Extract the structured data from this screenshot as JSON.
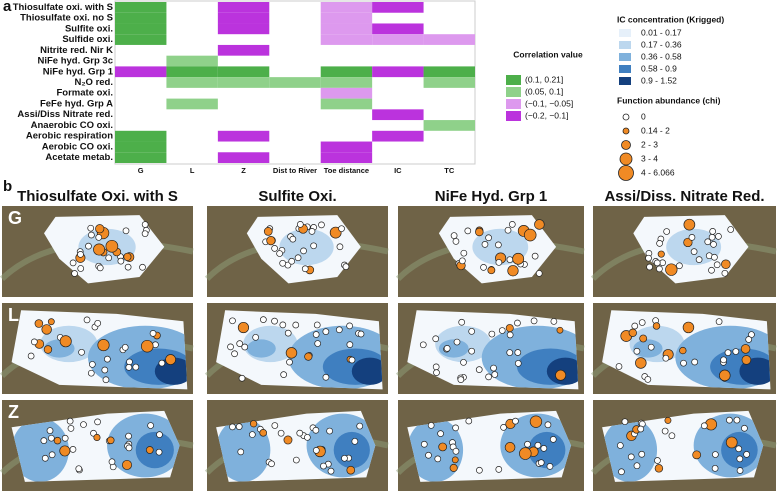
{
  "chart_data": {
    "type": "heatmap",
    "rows": [
      "Thiosulfate oxi. with S",
      "Thiosulfate oxi. no S",
      "Sulfite oxi.",
      "Sulfide oxi.",
      "Nitrite red. Nir K",
      "NiFe hyd. Grp 3c",
      "NiFe hyd. Grp 1",
      "N₂O red.",
      "Formate oxi.",
      "FeFe hyd. Grp A",
      "Assi/Diss Nitrate red.",
      "Anaerobic CO oxi.",
      "Aerobic respiration",
      "Aerobic CO oxi.",
      "Acetate metab."
    ],
    "columns": [
      "G",
      "L",
      "Z",
      "Dist to River",
      "Toe distance",
      "IC",
      "TC"
    ],
    "values": [
      [
        0.15,
        null,
        -0.15,
        null,
        -0.07,
        -0.15,
        null
      ],
      [
        0.15,
        null,
        -0.15,
        null,
        -0.07,
        null,
        null
      ],
      [
        0.15,
        null,
        -0.15,
        null,
        -0.07,
        -0.15,
        null
      ],
      [
        0.15,
        null,
        null,
        null,
        -0.07,
        -0.07,
        -0.07
      ],
      [
        null,
        null,
        -0.15,
        null,
        null,
        null,
        null
      ],
      [
        null,
        0.07,
        null,
        null,
        null,
        null,
        null
      ],
      [
        -0.15,
        0.15,
        0.15,
        null,
        0.15,
        -0.15,
        0.15
      ],
      [
        null,
        0.07,
        0.07,
        0.07,
        0.07,
        null,
        0.07
      ],
      [
        null,
        null,
        null,
        null,
        -0.07,
        null,
        null
      ],
      [
        null,
        0.07,
        null,
        null,
        0.07,
        null,
        null
      ],
      [
        null,
        null,
        null,
        null,
        null,
        -0.15,
        null
      ],
      [
        null,
        null,
        null,
        null,
        null,
        null,
        0.07
      ],
      [
        0.15,
        null,
        -0.15,
        null,
        null,
        -0.15,
        null
      ],
      [
        0.15,
        null,
        null,
        null,
        -0.15,
        null,
        null
      ],
      [
        0.15,
        null,
        -0.15,
        null,
        -0.15,
        null,
        null
      ]
    ],
    "legend_title": "Correlation value",
    "bins": [
      {
        "label": "(0.1, 0.21]",
        "min": 0.1,
        "max": 0.21,
        "color": "#4daf4a"
      },
      {
        "label": "(0.05, 0.1]",
        "min": 0.05,
        "max": 0.1,
        "color": "#8fd18a"
      },
      {
        "label": "(−0.1, −0.05]",
        "min": -0.1,
        "max": -0.05,
        "color": "#dd99ee"
      },
      {
        "label": "(−0.2, −0.1]",
        "min": -0.2,
        "max": -0.1,
        "color": "#bb33dd"
      }
    ]
  },
  "panel_labels": [
    "a",
    "b"
  ],
  "ic_legend": {
    "title": "IC concentration (Krigged)",
    "entries": [
      {
        "label": "0.01 - 0.17",
        "color": "#e6f0fa"
      },
      {
        "label": "0.17 - 0.36",
        "color": "#bcd7ee"
      },
      {
        "label": "0.36 - 0.58",
        "color": "#7fb1dc"
      },
      {
        "label": "0.58 - 0.9",
        "color": "#3f7fc0"
      },
      {
        "label": "0.9 - 1.52",
        "color": "#14407e"
      }
    ]
  },
  "abundance_legend": {
    "title": "Function abundance (chi)",
    "entries": [
      "0",
      "0.14 - 2",
      "2 - 3",
      "3 - 4",
      "4 - 6.066"
    ]
  },
  "maps": {
    "columns": [
      "Thiosulfate Oxi.  with S",
      "Sulfite Oxi.",
      "NiFe Hyd. Grp 1",
      "Assi/Diss. Nitrate Red."
    ],
    "rows": [
      "G",
      "L",
      "Z"
    ]
  }
}
